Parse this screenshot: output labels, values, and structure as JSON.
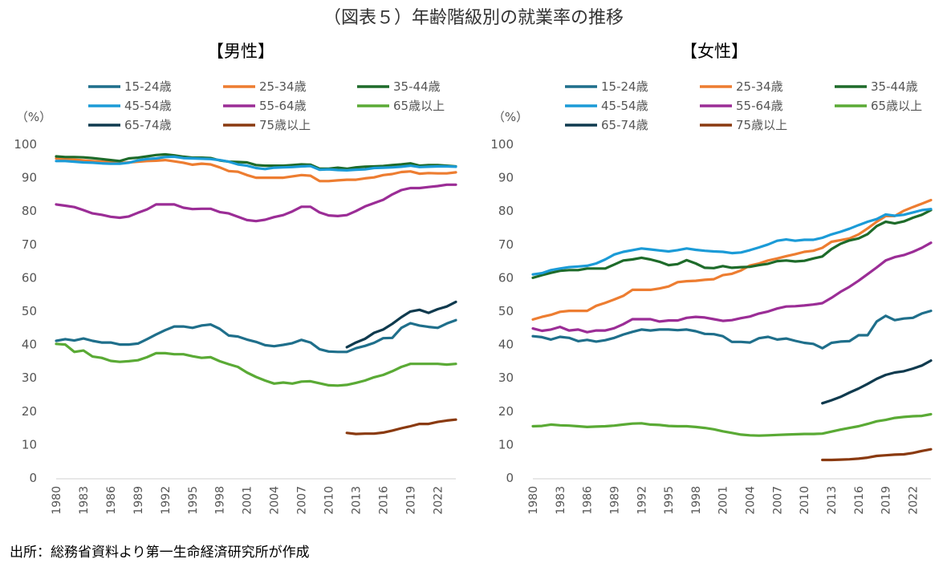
{
  "title": "（図表５）年齢階級別の就業率の推移",
  "source": "出所：総務省資料より第一生命経済研究所が作成",
  "chart_data": [
    {
      "type": "line",
      "title": "【男性】",
      "ylabel": "（%）",
      "xlabel": "",
      "ylim": [
        0,
        100
      ],
      "yticks": [
        "0",
        "10",
        "20",
        "30",
        "40",
        "50",
        "60",
        "70",
        "80",
        "90",
        "100"
      ],
      "xlim": [
        1980,
        2024
      ],
      "xticks": [
        "1980",
        "1983",
        "1986",
        "1989",
        "1992",
        "1995",
        "1998",
        "2001",
        "2004",
        "2007",
        "2010",
        "2013",
        "2016",
        "2019",
        "2022"
      ],
      "grid": false,
      "legend": "top",
      "series": [
        {
          "name": "15-24歳",
          "color": "#1f6f8b",
          "x_start": 1980,
          "values": [
            41.1,
            41.6,
            41.2,
            41.8,
            41.1,
            40.6,
            40.6,
            40.0,
            40.0,
            40.3,
            41.6,
            43.0,
            44.3,
            45.4,
            45.4,
            45.0,
            45.7,
            46.0,
            44.7,
            42.7,
            42.4,
            41.5,
            40.8,
            39.8,
            39.5,
            39.9,
            40.4,
            41.4,
            40.6,
            38.6,
            37.9,
            37.8,
            37.8,
            38.9,
            39.6,
            40.5,
            41.9,
            42.0,
            45.0,
            46.4,
            45.7,
            45.3,
            45.0,
            46.3,
            47.3
          ]
        },
        {
          "name": "25-34歳",
          "color": "#ed7d31",
          "x_start": 1980,
          "values": [
            95.8,
            95.6,
            95.4,
            95.2,
            95.0,
            94.8,
            94.6,
            94.4,
            94.6,
            94.8,
            95.0,
            95.1,
            95.3,
            94.9,
            94.5,
            93.9,
            94.2,
            94.0,
            93.1,
            92.0,
            91.8,
            90.8,
            90.0,
            90.0,
            90.0,
            90.0,
            90.4,
            90.8,
            90.6,
            89.0,
            89.0,
            89.2,
            89.4,
            89.4,
            89.8,
            90.1,
            90.8,
            91.1,
            91.7,
            91.9,
            91.2,
            91.4,
            91.3,
            91.3,
            91.6
          ]
        },
        {
          "name": "35-44歳",
          "color": "#1e6b2a",
          "x_start": 1980,
          "values": [
            96.4,
            96.2,
            96.2,
            96.1,
            95.9,
            95.6,
            95.3,
            95.0,
            95.8,
            96.0,
            96.4,
            96.8,
            97.0,
            96.7,
            96.3,
            96.0,
            96.0,
            95.9,
            95.2,
            94.8,
            94.7,
            94.6,
            93.8,
            93.6,
            93.6,
            93.6,
            93.8,
            94.0,
            93.9,
            92.7,
            92.7,
            93.0,
            92.7,
            93.1,
            93.3,
            93.4,
            93.5,
            93.8,
            94.0,
            94.3,
            93.6,
            93.8,
            93.8,
            93.6,
            93.4
          ]
        },
        {
          "name": "45-54歳",
          "color": "#1b9bd7",
          "x_start": 1980,
          "values": [
            95.0,
            95.0,
            94.8,
            94.6,
            94.5,
            94.3,
            94.2,
            94.2,
            94.5,
            95.2,
            95.6,
            95.8,
            96.2,
            96.3,
            95.9,
            95.8,
            95.7,
            95.6,
            95.3,
            94.8,
            94.0,
            93.6,
            92.9,
            92.6,
            93.0,
            93.1,
            93.2,
            93.4,
            93.5,
            92.4,
            92.5,
            92.3,
            92.2,
            92.4,
            92.5,
            92.9,
            93.0,
            93.1,
            93.3,
            93.6,
            93.2,
            93.3,
            93.4,
            93.4,
            93.3
          ]
        },
        {
          "name": "55-64歳",
          "color": "#9b2d96",
          "x_start": 1980,
          "values": [
            82.0,
            81.6,
            81.2,
            80.3,
            79.3,
            78.9,
            78.3,
            78.0,
            78.4,
            79.5,
            80.5,
            82.0,
            82.0,
            82.0,
            81.0,
            80.6,
            80.7,
            80.7,
            79.7,
            79.3,
            78.3,
            77.3,
            77.0,
            77.4,
            78.2,
            78.8,
            79.9,
            81.3,
            81.3,
            79.6,
            78.7,
            78.5,
            78.8,
            80.0,
            81.4,
            82.4,
            83.4,
            85.0,
            86.3,
            86.9,
            86.9,
            87.2,
            87.5,
            87.9,
            87.9
          ]
        },
        {
          "name": "65歳以上",
          "color": "#5aaa35",
          "x_start": 1980,
          "values": [
            40.2,
            40.0,
            37.8,
            38.2,
            36.4,
            36.0,
            35.1,
            34.8,
            35.0,
            35.3,
            36.2,
            37.4,
            37.4,
            37.1,
            37.1,
            36.5,
            36.0,
            36.2,
            35.0,
            34.1,
            33.3,
            31.6,
            30.3,
            29.2,
            28.3,
            28.6,
            28.3,
            28.9,
            29.0,
            28.4,
            27.8,
            27.7,
            27.9,
            28.5,
            29.2,
            30.2,
            30.9,
            32.0,
            33.3,
            34.2,
            34.2,
            34.2,
            34.2,
            34.0,
            34.2
          ]
        },
        {
          "name": "65-74歳",
          "color": "#0f3a4e",
          "x_start": 2012,
          "values": [
            39.2,
            40.6,
            41.7,
            43.5,
            44.5,
            46.2,
            48.2,
            49.9,
            50.4,
            49.5,
            50.6,
            51.4,
            52.8
          ]
        },
        {
          "name": "75歳以上",
          "color": "#8a3a10",
          "x_start": 2012,
          "values": [
            13.5,
            13.2,
            13.3,
            13.3,
            13.6,
            14.2,
            14.9,
            15.5,
            16.2,
            16.2,
            16.8,
            17.2,
            17.5
          ]
        }
      ]
    },
    {
      "type": "line",
      "title": "【女性】",
      "ylabel": "（%）",
      "xlabel": "",
      "ylim": [
        0,
        100
      ],
      "yticks": [
        "0",
        "10",
        "20",
        "30",
        "40",
        "50",
        "60",
        "70",
        "80",
        "90",
        "100"
      ],
      "xlim": [
        1980,
        2024
      ],
      "xticks": [
        "1980",
        "1983",
        "1986",
        "1989",
        "1992",
        "1995",
        "1998",
        "2001",
        "2004",
        "2007",
        "2010",
        "2013",
        "2016",
        "2019",
        "2022"
      ],
      "grid": false,
      "legend": "top",
      "series": [
        {
          "name": "15-24歳",
          "color": "#1f6f8b",
          "x_start": 1980,
          "values": [
            42.5,
            42.2,
            41.5,
            42.3,
            42.0,
            41.0,
            41.4,
            40.9,
            41.3,
            42.0,
            43.0,
            43.8,
            44.5,
            44.2,
            44.5,
            44.5,
            44.3,
            44.5,
            44.0,
            43.2,
            43.1,
            42.5,
            40.8,
            40.8,
            40.6,
            41.9,
            42.3,
            41.5,
            41.8,
            41.1,
            40.5,
            40.2,
            38.9,
            40.5,
            40.9,
            41.0,
            42.8,
            42.8,
            46.9,
            48.6,
            47.3,
            47.8,
            48.0,
            49.3,
            50.1
          ]
        },
        {
          "name": "25-34歳",
          "color": "#ed7d31",
          "x_start": 1980,
          "values": [
            47.5,
            48.3,
            48.9,
            49.8,
            50.1,
            50.1,
            50.1,
            51.6,
            52.5,
            53.5,
            54.6,
            56.4,
            56.4,
            56.4,
            56.8,
            57.4,
            58.7,
            59.0,
            59.1,
            59.4,
            59.6,
            60.8,
            61.2,
            62.2,
            63.7,
            64.3,
            65.2,
            65.8,
            66.5,
            67.1,
            67.8,
            68.1,
            69.0,
            70.8,
            71.3,
            71.8,
            73.0,
            74.8,
            76.8,
            78.5,
            78.5,
            80.1,
            81.2,
            82.2,
            83.3
          ]
        },
        {
          "name": "35-44歳",
          "color": "#1e6b2a",
          "x_start": 1980,
          "values": [
            60.0,
            60.8,
            61.5,
            62.1,
            62.3,
            62.3,
            62.8,
            62.8,
            62.8,
            64.0,
            65.2,
            65.5,
            66.0,
            65.5,
            64.8,
            63.8,
            64.1,
            65.3,
            64.3,
            63.0,
            62.9,
            63.5,
            63.0,
            63.2,
            63.3,
            63.8,
            64.2,
            65.0,
            65.2,
            64.9,
            65.1,
            65.8,
            66.4,
            68.6,
            70.2,
            71.2,
            71.8,
            73.1,
            75.5,
            76.8,
            76.3,
            76.9,
            78.0,
            78.9,
            80.3
          ]
        },
        {
          "name": "45-54歳",
          "color": "#1b9bd7",
          "x_start": 1980,
          "values": [
            61.0,
            61.4,
            62.3,
            62.8,
            63.2,
            63.4,
            63.6,
            64.3,
            65.5,
            67.0,
            67.8,
            68.3,
            68.8,
            68.5,
            68.2,
            67.9,
            68.3,
            68.8,
            68.4,
            68.1,
            67.9,
            67.8,
            67.4,
            67.6,
            68.3,
            69.1,
            70.0,
            71.1,
            71.5,
            71.1,
            71.4,
            71.4,
            72.0,
            73.0,
            73.8,
            74.7,
            75.8,
            76.8,
            77.6,
            79.0,
            78.6,
            78.9,
            79.6,
            80.3,
            80.6
          ]
        },
        {
          "name": "55-64歳",
          "color": "#9b2d96",
          "x_start": 1980,
          "values": [
            44.8,
            44.1,
            44.5,
            45.3,
            44.2,
            44.5,
            43.7,
            44.2,
            44.2,
            44.9,
            46.1,
            47.6,
            47.6,
            47.6,
            46.9,
            47.2,
            47.2,
            48.0,
            48.3,
            48.1,
            47.6,
            47.1,
            47.3,
            47.9,
            48.4,
            49.3,
            49.9,
            50.8,
            51.4,
            51.5,
            51.7,
            52.0,
            52.4,
            54.0,
            55.8,
            57.3,
            59.1,
            61.1,
            63.1,
            65.2,
            66.2,
            66.8,
            67.8,
            69.0,
            70.5
          ]
        },
        {
          "name": "65歳以上",
          "color": "#5aaa35",
          "x_start": 1980,
          "values": [
            15.5,
            15.6,
            16.0,
            15.8,
            15.7,
            15.5,
            15.3,
            15.4,
            15.5,
            15.7,
            16.0,
            16.3,
            16.4,
            16.0,
            15.9,
            15.6,
            15.5,
            15.5,
            15.3,
            15.0,
            14.6,
            14.0,
            13.5,
            13.0,
            12.8,
            12.7,
            12.8,
            12.9,
            13.0,
            13.1,
            13.2,
            13.2,
            13.3,
            13.9,
            14.5,
            15.0,
            15.5,
            16.2,
            17.0,
            17.4,
            18.0,
            18.3,
            18.5,
            18.6,
            19.1
          ]
        },
        {
          "name": "65-74歳",
          "color": "#0f3a4e",
          "x_start": 2012,
          "values": [
            22.4,
            23.3,
            24.3,
            25.6,
            26.8,
            28.2,
            29.7,
            30.9,
            31.6,
            32.0,
            32.8,
            33.7,
            35.2
          ]
        },
        {
          "name": "75歳以上",
          "color": "#8a3a10",
          "x_start": 2012,
          "values": [
            5.4,
            5.4,
            5.5,
            5.6,
            5.8,
            6.1,
            6.6,
            6.8,
            7.0,
            7.1,
            7.5,
            8.1,
            8.6
          ]
        }
      ]
    }
  ]
}
